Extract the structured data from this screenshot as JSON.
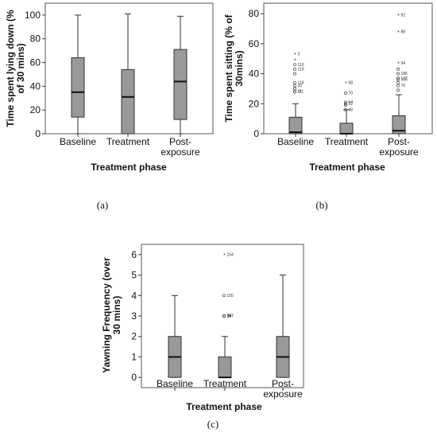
{
  "chart_data": [
    {
      "type": "box",
      "panel_label": "(a)",
      "xlabel": "Treatment phase",
      "ylabel": "Time spent lying down (% of 30 mins)",
      "ylabel_lines": [
        "Time spent lying down (%",
        "of 30 mins)"
      ],
      "ylim": [
        0,
        110
      ],
      "yticks": [
        0,
        20,
        40,
        60,
        80,
        100
      ],
      "box_color": "#999999",
      "categories": [
        [
          "Baseline"
        ],
        [
          "Treatment"
        ],
        [
          "Post-",
          "exposure"
        ]
      ],
      "boxes": [
        {
          "whisker_low": 0,
          "q1": 14,
          "median": 35,
          "q3": 64,
          "whisker_high": 100,
          "outliers": []
        },
        {
          "whisker_low": 0,
          "q1": 0,
          "median": 31,
          "q3": 54,
          "whisker_high": 101,
          "outliers": []
        },
        {
          "whisker_low": 0,
          "q1": 12,
          "median": 44,
          "q3": 71,
          "whisker_high": 99,
          "outliers": []
        }
      ]
    },
    {
      "type": "box",
      "panel_label": "(b)",
      "xlabel": "Treatment phase",
      "ylabel": "Time spent sitting (% of 30mins)",
      "ylabel_lines": [
        "Time spent sitting (% of",
        "30mins)"
      ],
      "ylim": [
        0,
        87
      ],
      "yticks": [
        0,
        20,
        40,
        60,
        80
      ],
      "box_color": "#999999",
      "categories": [
        [
          "Baseline"
        ],
        [
          "Treatment"
        ],
        [
          "Post-",
          "exposure"
        ]
      ],
      "boxes": [
        {
          "whisker_low": 0,
          "q1": 0,
          "median": 1,
          "q3": 11,
          "whisker_high": 20,
          "outliers": [
            {
              "value": 53,
              "label": "3",
              "extreme": true
            },
            {
              "value": 49,
              "label": "",
              "extreme": true
            },
            {
              "value": 46,
              "label": "110",
              "extreme": false
            },
            {
              "value": 43,
              "label": "119",
              "extreme": false
            },
            {
              "value": 40,
              "label": "",
              "extreme": false
            },
            {
              "value": 34,
              "label": "118",
              "extreme": false
            },
            {
              "value": 32,
              "label": "20",
              "extreme": false
            },
            {
              "value": 30,
              "label": "",
              "extreme": false
            },
            {
              "value": 28,
              "label": "31",
              "extreme": false
            },
            {
              "value": 28,
              "label": "111",
              "extreme": false
            }
          ]
        },
        {
          "whisker_low": 0,
          "q1": 0,
          "median": 0,
          "q3": 7,
          "whisker_high": 16,
          "outliers": [
            {
              "value": 34,
              "label": "58",
              "extreme": true
            },
            {
              "value": 27,
              "label": "70",
              "extreme": false
            },
            {
              "value": 21,
              "label": "54",
              "extreme": false
            },
            {
              "value": 20,
              "label": "52",
              "extreme": false
            },
            {
              "value": 19,
              "label": "",
              "extreme": false
            },
            {
              "value": 16,
              "label": "48",
              "extreme": false
            }
          ]
        },
        {
          "whisker_low": 0,
          "q1": 0,
          "median": 2,
          "q3": 12,
          "whisker_high": 26,
          "outliers": [
            {
              "value": 79,
              "label": "92",
              "extreme": true
            },
            {
              "value": 68,
              "label": "88",
              "extreme": true
            },
            {
              "value": 47,
              "label": "94",
              "extreme": true
            },
            {
              "value": 43,
              "label": "",
              "extreme": false
            },
            {
              "value": 40,
              "label": "186",
              "extreme": false
            },
            {
              "value": 37,
              "label": "177",
              "extreme": false
            },
            {
              "value": 36,
              "label": "106",
              "extreme": false
            },
            {
              "value": 34,
              "label": "",
              "extreme": false
            },
            {
              "value": 32,
              "label": "76",
              "extreme": false
            },
            {
              "value": 29,
              "label": "",
              "extreme": false
            }
          ]
        }
      ]
    },
    {
      "type": "box",
      "panel_label": "(c)",
      "xlabel": "Treatment phase",
      "ylabel": "Yawning Frequency (over 30 mins)",
      "ylabel_lines": [
        "Yawning Frequency (over",
        "30 mins)"
      ],
      "ylim": [
        -0.5,
        6.5
      ],
      "yticks": [
        0,
        1,
        2,
        3,
        4,
        5,
        6
      ],
      "box_color": "#999999",
      "categories": [
        [
          "Baseline"
        ],
        [
          "Treatment"
        ],
        [
          "Post-",
          "exposure"
        ]
      ],
      "boxes": [
        {
          "whisker_low": 0,
          "q1": 0,
          "median": 1,
          "q3": 2,
          "whisker_high": 4,
          "outliers": []
        },
        {
          "whisker_low": 0,
          "q1": 0,
          "median": 0,
          "q3": 1,
          "whisker_high": 2,
          "outliers": [
            {
              "value": 6,
              "label": "154",
              "extreme": true
            },
            {
              "value": 4,
              "label": "155",
              "extreme": false
            },
            {
              "value": 3,
              "label": "147",
              "extreme": false
            },
            {
              "value": 3,
              "label": "167",
              "extreme": false
            },
            {
              "value": 3,
              "label": "71",
              "extreme": false
            },
            {
              "value": 3,
              "label": "39",
              "extreme": false
            }
          ]
        },
        {
          "whisker_low": 0,
          "q1": 0,
          "median": 1,
          "q3": 2,
          "whisker_high": 5,
          "outliers": []
        }
      ]
    }
  ]
}
